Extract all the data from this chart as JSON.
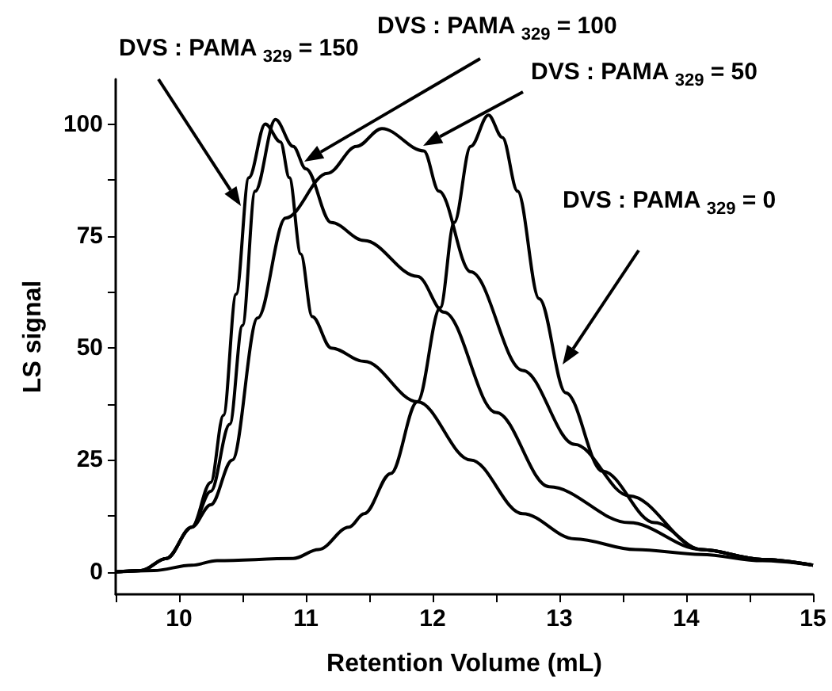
{
  "chart_data": {
    "type": "line",
    "xlabel": "Retention Volume (mL)",
    "ylabel": "LS signal",
    "xlim": [
      9.5,
      15
    ],
    "ylim": [
      -5,
      110
    ],
    "xticks": [
      {
        "value": 9.5,
        "label": null
      },
      10,
      {
        "value": 10.5,
        "label": null
      },
      11,
      {
        "value": 11.5,
        "label": null
      },
      12,
      {
        "value": 12.5,
        "label": null
      },
      13,
      {
        "value": 13.5,
        "label": null
      },
      14,
      {
        "value": 14.5,
        "label": null
      },
      15
    ],
    "yticks": [
      0,
      {
        "value": 12.5,
        "label": null
      },
      25,
      {
        "value": 37.5,
        "label": null
      },
      50,
      {
        "value": 62.5,
        "label": null
      },
      75,
      {
        "value": 87.5,
        "label": null
      },
      100
    ],
    "grid": false,
    "marker": "none",
    "line_style": "solid",
    "series": [
      {
        "color": "#000000",
        "x": [
          9.5,
          9.7,
          9.9,
          10.1,
          10.25,
          10.35,
          10.45,
          10.55,
          10.68,
          10.8,
          10.87,
          10.96,
          11.05,
          11.2,
          11.46,
          11.88,
          12.3,
          12.71,
          13.12,
          13.6,
          14.12,
          14.6,
          15
        ],
        "values": [
          0,
          0.3,
          3,
          10,
          20,
          35,
          62,
          88,
          100,
          96,
          88,
          71,
          57,
          50,
          47,
          38,
          25,
          13,
          7.4,
          5,
          3.9,
          2.5,
          1.5
        ]
      },
      {
        "color": "#000000",
        "x": [
          9.5,
          9.7,
          9.9,
          10.1,
          10.25,
          10.4,
          10.5,
          10.6,
          10.76,
          10.9,
          11.0,
          11.2,
          11.46,
          11.88,
          12.09,
          12.5,
          12.92,
          13.55,
          14.12,
          14.6,
          15
        ],
        "values": [
          0,
          0.3,
          3,
          10,
          18,
          33,
          55,
          85,
          101,
          95,
          90,
          78,
          74,
          66,
          58,
          35.6,
          19,
          11,
          5,
          2.8,
          1.5
        ]
      },
      {
        "color": "#000000",
        "x": [
          9.5,
          9.7,
          9.9,
          10.1,
          10.25,
          10.42,
          10.62,
          10.84,
          11.17,
          11.4,
          11.6,
          11.93,
          12.05,
          12.3,
          12.71,
          13.12,
          13.55,
          14.12,
          14.6,
          15
        ],
        "values": [
          0,
          0.3,
          3,
          10,
          15,
          25,
          56.7,
          79,
          89,
          95,
          99,
          94,
          85,
          67,
          45,
          28.5,
          17,
          5,
          2.8,
          1.5
        ]
      },
      {
        "color": "#000000",
        "x": [
          9.5,
          9.8,
          10.1,
          10.3,
          10.9,
          11.1,
          11.34,
          11.46,
          11.67,
          11.88,
          12.06,
          12.17,
          12.3,
          12.44,
          12.55,
          12.67,
          12.84,
          13.05,
          13.34,
          13.75,
          14.12,
          14.6,
          15
        ],
        "values": [
          0,
          0.3,
          1.5,
          2.5,
          3,
          5,
          10,
          13,
          22,
          38,
          59,
          78,
          95,
          102,
          97,
          85,
          61,
          40,
          22.5,
          11,
          5,
          2.8,
          1.5
        ]
      }
    ],
    "annotations": [
      "DVS : PAMA $_{329}$ = 150",
      "DVS : PAMA $_{329}$ = 100",
      "DVS : PAMA $_{329}$ = 50",
      "DVS : PAMA $_{329}$ = 0"
    ]
  }
}
